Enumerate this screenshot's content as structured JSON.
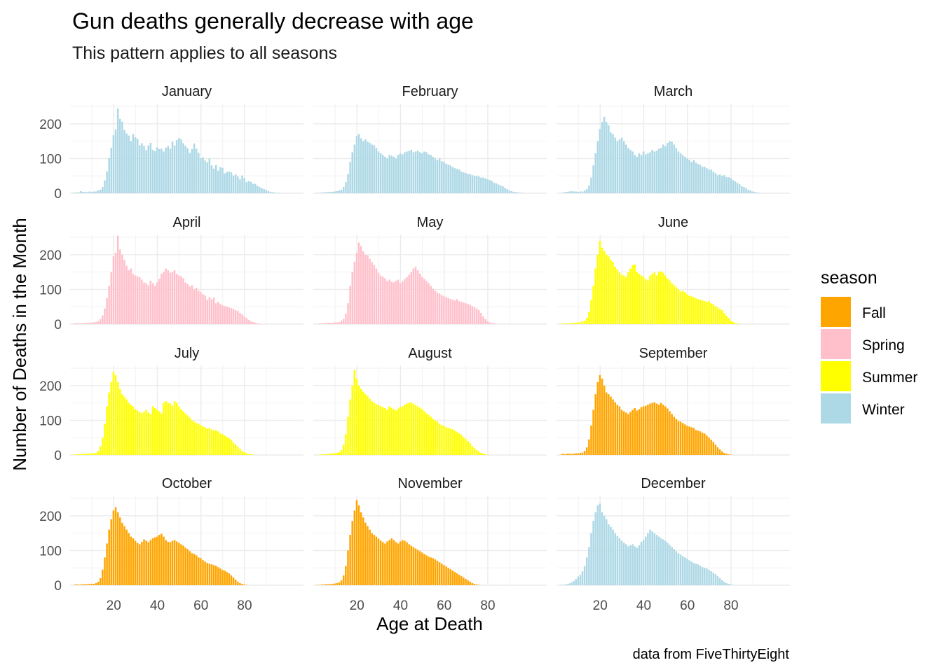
{
  "chart_data": {
    "type": "bar",
    "title": "Gun deaths generally decrease with age",
    "subtitle": "This pattern applies to all seasons",
    "xlabel": "Age at Death",
    "ylabel": "Number of Deaths in the Month",
    "caption": "data from FiveThirtyEight",
    "x_ticks": [
      20,
      40,
      60,
      80
    ],
    "y_ticks": [
      0,
      100,
      200
    ],
    "xlim": [
      0,
      107
    ],
    "ylim": [
      0,
      258
    ],
    "legend": {
      "title": "season",
      "position": "right",
      "entries": [
        {
          "label": "Fall",
          "color": "#FFA500"
        },
        {
          "label": "Spring",
          "color": "#FFC0CB"
        },
        {
          "label": "Summer",
          "color": "#FFFF00"
        },
        {
          "label": "Winter",
          "color": "#ADD8E6"
        }
      ]
    },
    "season_colors": {
      "Fall": "#FFA500",
      "Spring": "#FFC0CB",
      "Summer": "#FFFF00",
      "Winter": "#ADD8E6"
    },
    "facets": [
      {
        "month": "January",
        "season": "Winter",
        "age_start": 1,
        "values": [
          0,
          2,
          2,
          3,
          6,
          4,
          4,
          3,
          5,
          4,
          5,
          5,
          8,
          10,
          18,
          37,
          63,
          101,
          131,
          167,
          183,
          244,
          214,
          206,
          182,
          172,
          166,
          150,
          170,
          161,
          157,
          138,
          144,
          136,
          124,
          138,
          145,
          125,
          121,
          132,
          127,
          128,
          120,
          131,
          136,
          128,
          148,
          138,
          153,
          159,
          155,
          144,
          136,
          129,
          116,
          127,
          143,
          128,
          116,
          101,
          103,
          94,
          89,
          100,
          80,
          71,
          81,
          65,
          75,
          73,
          57,
          61,
          62,
          60,
          51,
          54,
          48,
          40,
          51,
          44,
          32,
          35,
          33,
          27,
          27,
          21,
          18,
          14,
          12,
          9,
          6,
          4,
          3,
          2,
          1,
          1,
          0,
          0,
          0,
          0
        ]
      },
      {
        "month": "February",
        "season": "Winter",
        "age_start": 1,
        "values": [
          0,
          1,
          1,
          2,
          2,
          3,
          3,
          4,
          4,
          5,
          6,
          8,
          10,
          18,
          32,
          55,
          90,
          118,
          140,
          165,
          170,
          158,
          150,
          155,
          148,
          145,
          140,
          138,
          130,
          120,
          115,
          110,
          105,
          100,
          110,
          108,
          105,
          100,
          110,
          115,
          112,
          118,
          120,
          122,
          125,
          118,
          120,
          122,
          118,
          115,
          120,
          118,
          112,
          110,
          105,
          100,
          95,
          100,
          92,
          90,
          85,
          82,
          80,
          75,
          72,
          70,
          68,
          62,
          60,
          58,
          55,
          55,
          52,
          50,
          50,
          48,
          45,
          45,
          43,
          40,
          38,
          35,
          30,
          28,
          25,
          22,
          20,
          15,
          12,
          8,
          6,
          4,
          3,
          2,
          1,
          1,
          0,
          0,
          0,
          0
        ]
      },
      {
        "month": "March",
        "season": "Winter",
        "age_start": 1,
        "values": [
          0,
          0,
          2,
          3,
          4,
          5,
          6,
          5,
          5,
          4,
          5,
          5,
          8,
          12,
          22,
          45,
          80,
          115,
          150,
          185,
          205,
          220,
          205,
          195,
          175,
          170,
          160,
          150,
          155,
          160,
          150,
          140,
          130,
          125,
          120,
          110,
          105,
          115,
          110,
          120,
          112,
          115,
          118,
          125,
          120,
          122,
          128,
          130,
          140,
          135,
          145,
          150,
          148,
          140,
          130,
          120,
          115,
          110,
          105,
          100,
          96,
          90,
          95,
          88,
          84,
          82,
          76,
          76,
          72,
          68,
          68,
          62,
          58,
          52,
          54,
          50,
          52,
          46,
          46,
          44,
          38,
          34,
          30,
          26,
          20,
          18,
          14,
          10,
          8,
          5,
          3,
          2,
          1,
          0,
          0,
          0,
          0,
          0,
          0,
          0
        ]
      },
      {
        "month": "April",
        "season": "Spring",
        "age_start": 1,
        "values": [
          0,
          2,
          3,
          3,
          2,
          3,
          3,
          4,
          4,
          4,
          5,
          6,
          8,
          14,
          25,
          45,
          75,
          110,
          150,
          195,
          205,
          255,
          215,
          200,
          185,
          168,
          155,
          160,
          145,
          140,
          138,
          135,
          128,
          120,
          118,
          112,
          125,
          118,
          110,
          120,
          130,
          145,
          150,
          160,
          155,
          148,
          150,
          155,
          145,
          140,
          138,
          132,
          120,
          115,
          108,
          112,
          100,
          105,
          96,
          92,
          86,
          82,
          70,
          78,
          72,
          76,
          60,
          64,
          58,
          54,
          52,
          50,
          48,
          46,
          44,
          40,
          38,
          32,
          28,
          22,
          18,
          12,
          8,
          6,
          4,
          2,
          1,
          0,
          0,
          0,
          0,
          0,
          0,
          0,
          0,
          0,
          0,
          0,
          0,
          0
        ]
      },
      {
        "month": "May",
        "season": "Spring",
        "age_start": 1,
        "values": [
          0,
          1,
          2,
          2,
          3,
          3,
          4,
          3,
          4,
          5,
          5,
          6,
          10,
          15,
          30,
          60,
          110,
          150,
          180,
          205,
          235,
          225,
          210,
          200,
          198,
          188,
          178,
          170,
          160,
          148,
          140,
          136,
          132,
          124,
          128,
          122,
          120,
          125,
          128,
          118,
          124,
          130,
          135,
          142,
          150,
          160,
          165,
          155,
          145,
          135,
          130,
          124,
          118,
          110,
          102,
          96,
          90,
          88,
          84,
          80,
          78,
          75,
          72,
          70,
          68,
          72,
          66,
          64,
          62,
          60,
          58,
          56,
          52,
          48,
          45,
          40,
          32,
          22,
          14,
          8,
          5,
          3,
          2,
          1,
          0,
          0,
          0,
          0,
          0,
          0,
          0,
          0,
          0,
          0,
          0,
          0,
          0,
          0,
          0,
          0
        ]
      },
      {
        "month": "June",
        "season": "Summer",
        "age_start": 1,
        "values": [
          0,
          1,
          1,
          2,
          2,
          2,
          3,
          3,
          4,
          5,
          6,
          8,
          10,
          18,
          35,
          70,
          110,
          160,
          200,
          240,
          220,
          210,
          200,
          195,
          185,
          178,
          165,
          158,
          150,
          142,
          140,
          135,
          150,
          160,
          170,
          172,
          150,
          145,
          140,
          136,
          130,
          126,
          140,
          145,
          150,
          140,
          150,
          152,
          148,
          140,
          132,
          126,
          118,
          112,
          106,
          100,
          94,
          96,
          92,
          86,
          82,
          80,
          78,
          74,
          72,
          70,
          68,
          66,
          64,
          66,
          60,
          58,
          52,
          48,
          44,
          40,
          32,
          24,
          18,
          10,
          6,
          3,
          2,
          1,
          0,
          0,
          0,
          0,
          0,
          0,
          0,
          0,
          0,
          0,
          0,
          0,
          0,
          0,
          0,
          0
        ]
      },
      {
        "month": "July",
        "season": "Summer",
        "age_start": 1,
        "values": [
          0,
          2,
          2,
          3,
          3,
          3,
          4,
          4,
          4,
          5,
          5,
          6,
          12,
          25,
          50,
          90,
          140,
          180,
          210,
          240,
          230,
          210,
          190,
          175,
          168,
          160,
          150,
          145,
          140,
          132,
          128,
          124,
          120,
          125,
          130,
          122,
          118,
          140,
          135,
          130,
          126,
          120,
          150,
          155,
          150,
          148,
          142,
          155,
          150,
          140,
          132,
          126,
          120,
          114,
          108,
          100,
          96,
          92,
          90,
          86,
          82,
          80,
          76,
          78,
          74,
          70,
          72,
          68,
          62,
          60,
          56,
          52,
          48,
          44,
          36,
          30,
          24,
          18,
          12,
          8,
          5,
          3,
          2,
          1,
          0,
          0,
          0,
          0,
          0,
          0,
          0,
          0,
          0,
          0,
          0,
          0,
          0,
          0,
          0,
          0
        ]
      },
      {
        "month": "August",
        "season": "Summer",
        "age_start": 1,
        "values": [
          0,
          1,
          1,
          2,
          2,
          3,
          3,
          4,
          5,
          5,
          6,
          8,
          14,
          30,
          60,
          110,
          160,
          200,
          245,
          220,
          200,
          190,
          182,
          175,
          170,
          162,
          155,
          150,
          146,
          144,
          140,
          138,
          135,
          130,
          140,
          136,
          132,
          128,
          134,
          138,
          140,
          145,
          148,
          150,
          152,
          148,
          144,
          140,
          136,
          132,
          126,
          120,
          115,
          110,
          104,
          100,
          96,
          90,
          86,
          84,
          80,
          78,
          76,
          74,
          70,
          66,
          62,
          58,
          52,
          46,
          40,
          34,
          26,
          20,
          14,
          10,
          6,
          4,
          2,
          1,
          0,
          0,
          0,
          0,
          0,
          0,
          0,
          0,
          0,
          0,
          0,
          0,
          0,
          0,
          0,
          0,
          0,
          0,
          0,
          0
        ]
      },
      {
        "month": "September",
        "season": "Fall",
        "age_start": 1,
        "values": [
          0,
          1,
          4,
          2,
          4,
          4,
          3,
          4,
          5,
          5,
          6,
          7,
          12,
          22,
          45,
          85,
          130,
          175,
          210,
          230,
          220,
          200,
          180,
          175,
          168,
          160,
          152,
          145,
          140,
          130,
          126,
          122,
          118,
          124,
          130,
          135,
          128,
          132,
          138,
          140,
          142,
          145,
          148,
          150,
          152,
          148,
          145,
          150,
          145,
          140,
          134,
          126,
          118,
          110,
          104,
          98,
          96,
          92,
          88,
          84,
          82,
          80,
          78,
          72,
          70,
          68,
          64,
          62,
          56,
          50,
          44,
          38,
          30,
          22,
          16,
          10,
          6,
          4,
          2,
          1,
          0,
          0,
          0,
          0,
          0,
          0,
          0,
          0,
          0,
          0,
          0,
          0,
          0,
          0,
          0,
          0,
          0,
          0,
          0,
          0
        ]
      },
      {
        "month": "October",
        "season": "Fall",
        "age_start": 1,
        "values": [
          0,
          1,
          3,
          2,
          2,
          3,
          3,
          3,
          4,
          4,
          4,
          6,
          10,
          20,
          45,
          80,
          120,
          160,
          190,
          215,
          225,
          210,
          195,
          180,
          170,
          160,
          150,
          140,
          135,
          128,
          122,
          118,
          125,
          132,
          128,
          124,
          130,
          135,
          138,
          140,
          145,
          148,
          140,
          130,
          125,
          124,
          128,
          130,
          126,
          122,
          118,
          114,
          108,
          104,
          98,
          92,
          90,
          86,
          80,
          78,
          72,
          68,
          64,
          62,
          60,
          58,
          56,
          52,
          48,
          44,
          42,
          38,
          34,
          28,
          22,
          16,
          10,
          6,
          4,
          2,
          1,
          0,
          0,
          0,
          0,
          0,
          0,
          0,
          0,
          0,
          0,
          0,
          0,
          0,
          0,
          0,
          0,
          0,
          0,
          0
        ]
      },
      {
        "month": "November",
        "season": "Fall",
        "age_start": 1,
        "values": [
          0,
          1,
          1,
          2,
          2,
          3,
          3,
          3,
          4,
          5,
          6,
          8,
          14,
          28,
          55,
          100,
          145,
          185,
          215,
          245,
          230,
          210,
          195,
          180,
          170,
          160,
          150,
          145,
          140,
          134,
          128,
          124,
          120,
          126,
          130,
          135,
          130,
          124,
          120,
          126,
          130,
          128,
          124,
          118,
          114,
          110,
          106,
          102,
          98,
          94,
          90,
          86,
          82,
          80,
          78,
          74,
          70,
          66,
          62,
          58,
          54,
          50,
          46,
          42,
          38,
          34,
          30,
          26,
          22,
          18,
          14,
          10,
          6,
          4,
          2,
          1,
          0,
          0,
          0,
          0,
          0,
          0,
          0,
          0,
          0,
          0,
          0,
          0,
          0,
          0,
          0,
          0,
          0,
          0,
          0,
          0,
          0,
          0,
          0,
          0
        ]
      },
      {
        "month": "December",
        "season": "Winter",
        "age_start": 1,
        "values": [
          0,
          1,
          1,
          2,
          3,
          5,
          8,
          12,
          18,
          25,
          30,
          40,
          55,
          80,
          110,
          150,
          185,
          210,
          230,
          235,
          210,
          200,
          190,
          175,
          168,
          160,
          150,
          142,
          135,
          128,
          122,
          118,
          112,
          115,
          118,
          112,
          108,
          115,
          125,
          130,
          140,
          150,
          160,
          155,
          150,
          145,
          140,
          135,
          132,
          128,
          122,
          116,
          110,
          104,
          98,
          92,
          88,
          84,
          80,
          76,
          72,
          68,
          64,
          62,
          60,
          56,
          52,
          50,
          48,
          44,
          40,
          36,
          32,
          26,
          20,
          14,
          10,
          6,
          4,
          2,
          1,
          0,
          0,
          0,
          0,
          0,
          0,
          0,
          0,
          0,
          0,
          0,
          0,
          0,
          0,
          0,
          0,
          0,
          0,
          0
        ]
      }
    ]
  }
}
